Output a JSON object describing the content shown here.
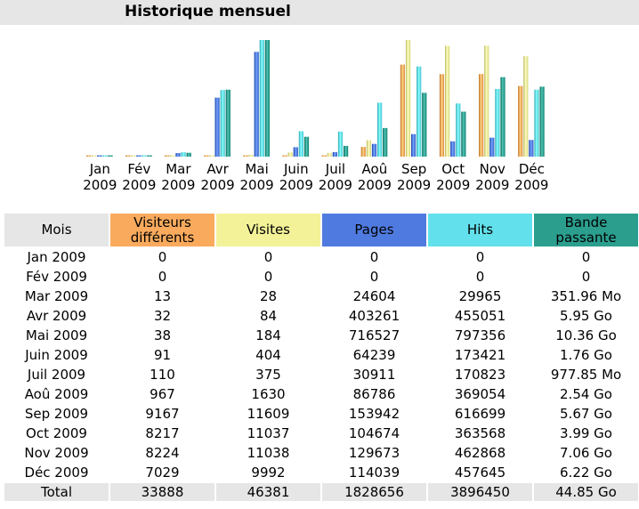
{
  "title": "Historique mensuel",
  "colors": {
    "visiteurs": "#f9aa5d",
    "visites": "#f3f299",
    "pages": "#4f7be0",
    "hits": "#62e1ec",
    "bande": "#2b9e8e",
    "header_gray": "#e6e6e6"
  },
  "table": {
    "headers": {
      "mois": "Mois",
      "visiteurs": "Visiteurs différents",
      "visites": "Visites",
      "pages": "Pages",
      "hits": "Hits",
      "bande": "Bande passante"
    },
    "rows": [
      {
        "mois": "Jan 2009",
        "visiteurs": "0",
        "visites": "0",
        "pages": "0",
        "hits": "0",
        "bande": "0"
      },
      {
        "mois": "Fév 2009",
        "visiteurs": "0",
        "visites": "0",
        "pages": "0",
        "hits": "0",
        "bande": "0"
      },
      {
        "mois": "Mar 2009",
        "visiteurs": "13",
        "visites": "28",
        "pages": "24604",
        "hits": "29965",
        "bande": "351.96 Mo"
      },
      {
        "mois": "Avr 2009",
        "visiteurs": "32",
        "visites": "84",
        "pages": "403261",
        "hits": "455051",
        "bande": "5.95 Go"
      },
      {
        "mois": "Mai 2009",
        "visiteurs": "38",
        "visites": "184",
        "pages": "716527",
        "hits": "797356",
        "bande": "10.36 Go"
      },
      {
        "mois": "Juin 2009",
        "visiteurs": "91",
        "visites": "404",
        "pages": "64239",
        "hits": "173421",
        "bande": "1.76 Go"
      },
      {
        "mois": "Juil 2009",
        "visiteurs": "110",
        "visites": "375",
        "pages": "30911",
        "hits": "170823",
        "bande": "977.85 Mo"
      },
      {
        "mois": "Aoû 2009",
        "visiteurs": "967",
        "visites": "1630",
        "pages": "86786",
        "hits": "369054",
        "bande": "2.54 Go"
      },
      {
        "mois": "Sep 2009",
        "visiteurs": "9167",
        "visites": "11609",
        "pages": "153942",
        "hits": "616699",
        "bande": "5.67 Go"
      },
      {
        "mois": "Oct 2009",
        "visiteurs": "8217",
        "visites": "11037",
        "pages": "104674",
        "hits": "363568",
        "bande": "3.99 Go"
      },
      {
        "mois": "Nov 2009",
        "visiteurs": "8224",
        "visites": "11038",
        "pages": "129673",
        "hits": "462868",
        "bande": "7.06 Go"
      },
      {
        "mois": "Déc 2009",
        "visiteurs": "7029",
        "visites": "9992",
        "pages": "114039",
        "hits": "457645",
        "bande": "6.22 Go"
      }
    ],
    "total": {
      "mois": "Total",
      "visiteurs": "33888",
      "visites": "46381",
      "pages": "1828656",
      "hits": "3896450",
      "bande": "44.85 Go"
    }
  },
  "chart_data": {
    "type": "bar",
    "categories": [
      "Jan",
      "Fév",
      "Mar",
      "Avr",
      "Mai",
      "Juin",
      "Juil",
      "Aoû",
      "Sep",
      "Oct",
      "Nov",
      "Déc"
    ],
    "categories_year": "2009",
    "series": [
      {
        "key": "visiteurs",
        "values": [
          0,
          0,
          13,
          32,
          38,
          91,
          110,
          967,
          9167,
          8217,
          8224,
          7029
        ]
      },
      {
        "key": "visites",
        "values": [
          0,
          0,
          28,
          84,
          184,
          404,
          375,
          1630,
          11609,
          11037,
          11038,
          9992
        ]
      },
      {
        "key": "pages",
        "values": [
          0,
          0,
          24604,
          403261,
          716527,
          64239,
          30911,
          86786,
          153942,
          104674,
          129673,
          114039
        ]
      },
      {
        "key": "hits",
        "values": [
          0,
          0,
          29965,
          455051,
          797356,
          173421,
          170823,
          369054,
          616699,
          363568,
          462868,
          457645
        ]
      },
      {
        "key": "bande",
        "values": [
          0,
          0,
          351.96,
          6093,
          10609,
          1802,
          977.85,
          2601,
          5806,
          4086,
          7229,
          6369
        ],
        "unit": "Mo"
      }
    ]
  }
}
